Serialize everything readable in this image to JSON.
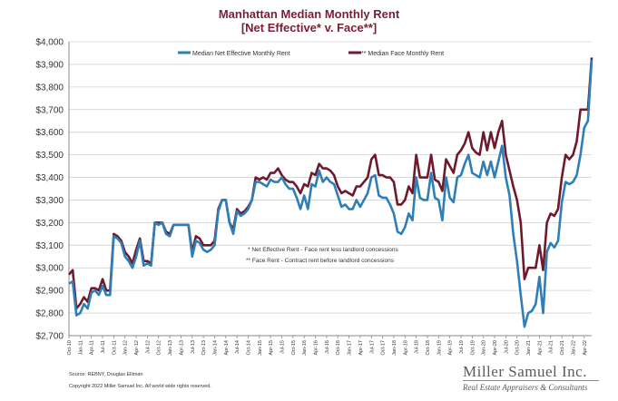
{
  "chart_data": {
    "type": "line",
    "title": "Manhattan Median Monthly Rent",
    "subtitle": "[Net Effective* v. Face**]",
    "ylim": [
      2700,
      4000
    ],
    "y_ticks": [
      "$2,700",
      "$2,800",
      "$2,900",
      "$3,000",
      "$3,100",
      "$3,200",
      "$3,300",
      "$3,400",
      "$3,500",
      "$3,600",
      "$3,700",
      "$3,800",
      "$3,900",
      "$4,000"
    ],
    "x_start": "Oct-10",
    "x_tick_labels": [
      "Oct-10",
      "Jan-11",
      "Apr-11",
      "Jul-11",
      "Oct-11",
      "Jan-12",
      "Apr-12",
      "Jul-12",
      "Oct-12",
      "Jan-13",
      "Apr-13",
      "Jul-13",
      "Oct-13",
      "Jan-14",
      "Apr-14",
      "Jul-14",
      "Oct-14",
      "Jan-15",
      "Apr-15",
      "Jul-15",
      "Oct-15",
      "Jan-16",
      "Apr-16",
      "Jul-16",
      "Oct-16",
      "Jan-17",
      "Apr-17",
      "Jul-17",
      "Oct-17",
      "Jan-18",
      "Apr-18",
      "Jul-18",
      "Oct-18",
      "Jan-19",
      "Apr-19",
      "Jul-19",
      "Oct-19",
      "Jan-20",
      "Apr-20",
      "Jul-20",
      "Oct-20",
      "Jan-21",
      "Apr-21",
      "Jul-21",
      "Oct-21",
      "Jan-22",
      "Apr-22"
    ],
    "grid": true,
    "legend_position": "top",
    "series": [
      {
        "name": "Median Net Effective Monthly Rent",
        "color": "#2e7eb8",
        "values": [
          2930,
          2940,
          2790,
          2800,
          2840,
          2820,
          2890,
          2900,
          2880,
          2920,
          2880,
          2880,
          3140,
          3130,
          3110,
          3050,
          3030,
          3000,
          3050,
          3120,
          3010,
          3020,
          3010,
          3200,
          3190,
          3200,
          3150,
          3140,
          3190,
          3190,
          3190,
          3190,
          3190,
          3050,
          3120,
          3110,
          3080,
          3070,
          3080,
          3100,
          3250,
          3300,
          3300,
          3200,
          3150,
          3250,
          3230,
          3240,
          3260,
          3300,
          3380,
          3380,
          3370,
          3360,
          3390,
          3380,
          3380,
          3400,
          3370,
          3350,
          3350,
          3310,
          3260,
          3320,
          3260,
          3370,
          3360,
          3430,
          3380,
          3400,
          3380,
          3370,
          3320,
          3270,
          3280,
          3260,
          3260,
          3300,
          3270,
          3300,
          3330,
          3400,
          3410,
          3320,
          3310,
          3310,
          3280,
          3240,
          3160,
          3150,
          3180,
          3240,
          3210,
          3400,
          3310,
          3300,
          3300,
          3420,
          3310,
          3300,
          3210,
          3400,
          3310,
          3290,
          3400,
          3410,
          3460,
          3500,
          3420,
          3410,
          3400,
          3470,
          3410,
          3470,
          3400,
          3470,
          3540,
          3400,
          3320,
          3150,
          3030,
          2880,
          2740,
          2800,
          2810,
          2840,
          2960,
          2800,
          3070,
          3110,
          3090,
          3120,
          3290,
          3380,
          3370,
          3380,
          3410,
          3500,
          3620,
          3650,
          3920
        ]
      },
      {
        "name": "** Median Face Monthly Rent",
        "color": "#6e1a2d",
        "values": [
          2970,
          2990,
          2820,
          2840,
          2870,
          2850,
          2910,
          2910,
          2900,
          2950,
          2900,
          2900,
          3150,
          3140,
          3120,
          3070,
          3050,
          3020,
          3080,
          3130,
          3030,
          3030,
          3020,
          3200,
          3200,
          3200,
          3160,
          3150,
          3190,
          3190,
          3190,
          3190,
          3190,
          3070,
          3140,
          3130,
          3100,
          3100,
          3100,
          3120,
          3260,
          3300,
          3300,
          3200,
          3170,
          3260,
          3240,
          3250,
          3270,
          3300,
          3400,
          3390,
          3400,
          3390,
          3420,
          3420,
          3440,
          3410,
          3390,
          3380,
          3380,
          3360,
          3330,
          3370,
          3360,
          3420,
          3410,
          3460,
          3440,
          3440,
          3430,
          3410,
          3360,
          3330,
          3340,
          3330,
          3320,
          3360,
          3360,
          3380,
          3400,
          3480,
          3500,
          3410,
          3410,
          3400,
          3400,
          3380,
          3280,
          3280,
          3300,
          3360,
          3330,
          3500,
          3400,
          3400,
          3400,
          3500,
          3390,
          3380,
          3340,
          3480,
          3450,
          3420,
          3500,
          3520,
          3550,
          3600,
          3530,
          3510,
          3500,
          3600,
          3520,
          3600,
          3530,
          3600,
          3650,
          3500,
          3430,
          3360,
          3300,
          3200,
          2950,
          3000,
          3000,
          3000,
          3100,
          2990,
          3200,
          3240,
          3230,
          3260,
          3400,
          3500,
          3480,
          3500,
          3560,
          3700,
          3700,
          3700,
          3930
        ]
      }
    ],
    "notes": [
      "* Net Effective Rent - Face rent less landlord concessions",
      "** Face Rent - Contract rent before landlord concessions"
    ]
  },
  "footer": {
    "source": "Source: REBNY, Douglas Elliman",
    "copyright": "Copyright 2022 Miller Samuel Inc. All world wide rights reserved."
  },
  "brand": {
    "name": "Miller Samuel Inc.",
    "tagline": "Real Estate Appraisers & Consultants"
  }
}
